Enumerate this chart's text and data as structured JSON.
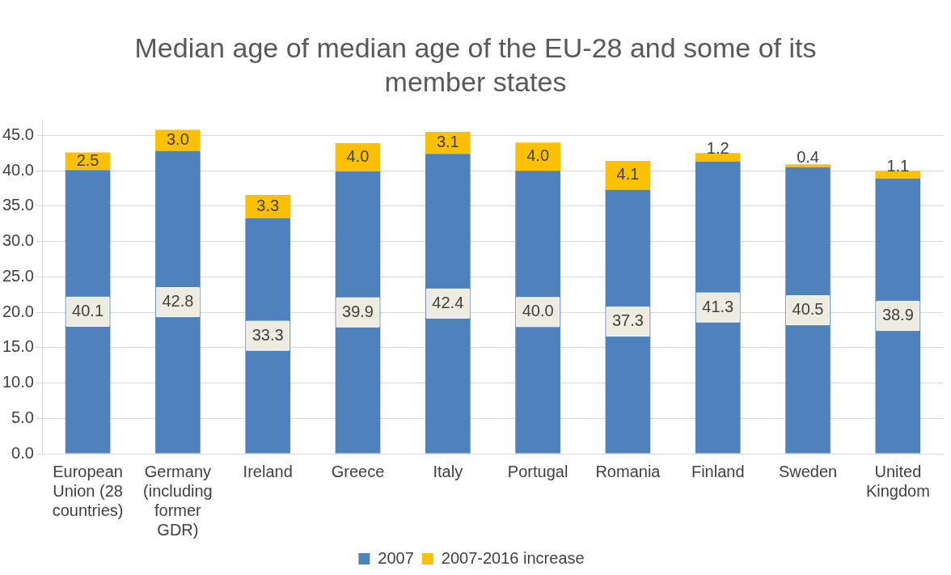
{
  "chart_data": {
    "type": "bar",
    "title": "Median age of median age of the EU-28 and some of its member states",
    "categories": [
      "European Union (28 countries)",
      "Germany (including former GDR)",
      "Ireland",
      "Greece",
      "Italy",
      "Portugal",
      "Romania",
      "Finland",
      "Sweden",
      "United Kingdom"
    ],
    "series": [
      {
        "name": "2007",
        "color": "#4f81bd",
        "values": [
          40.1,
          42.8,
          33.3,
          39.9,
          42.4,
          40.0,
          37.3,
          41.3,
          40.5,
          38.9
        ],
        "value_labels": [
          "40.1",
          "42.8",
          "33.3",
          "39.9",
          "42.4",
          "40.0",
          "37.3",
          "41.3",
          "40.5",
          "38.9"
        ]
      },
      {
        "name": "2007-2016 increase",
        "color": "#ffc000",
        "values": [
          2.5,
          3.0,
          3.3,
          4.0,
          3.1,
          4.0,
          4.1,
          1.2,
          0.4,
          1.1
        ],
        "value_labels": [
          "2.5",
          "3.0",
          "3.3",
          "4.0",
          "3.1",
          "4.0",
          "4.1",
          "1.2",
          "0.4",
          "1.1"
        ]
      }
    ],
    "stacked": true,
    "grid": "y",
    "legend": "bottom",
    "ylim": [
      0,
      47
    ],
    "yticks": [
      {
        "value": 0,
        "label": "0.0"
      },
      {
        "value": 5,
        "label": "5.0"
      },
      {
        "value": 10,
        "label": "10.0"
      },
      {
        "value": 15,
        "label": "15.0"
      },
      {
        "value": 20,
        "label": "20.0"
      },
      {
        "value": 25,
        "label": "25.0"
      },
      {
        "value": 30,
        "label": "30.0"
      },
      {
        "value": 35,
        "label": "35.0"
      },
      {
        "value": 40,
        "label": "40.0"
      },
      {
        "value": 45,
        "label": "45.0"
      }
    ]
  }
}
